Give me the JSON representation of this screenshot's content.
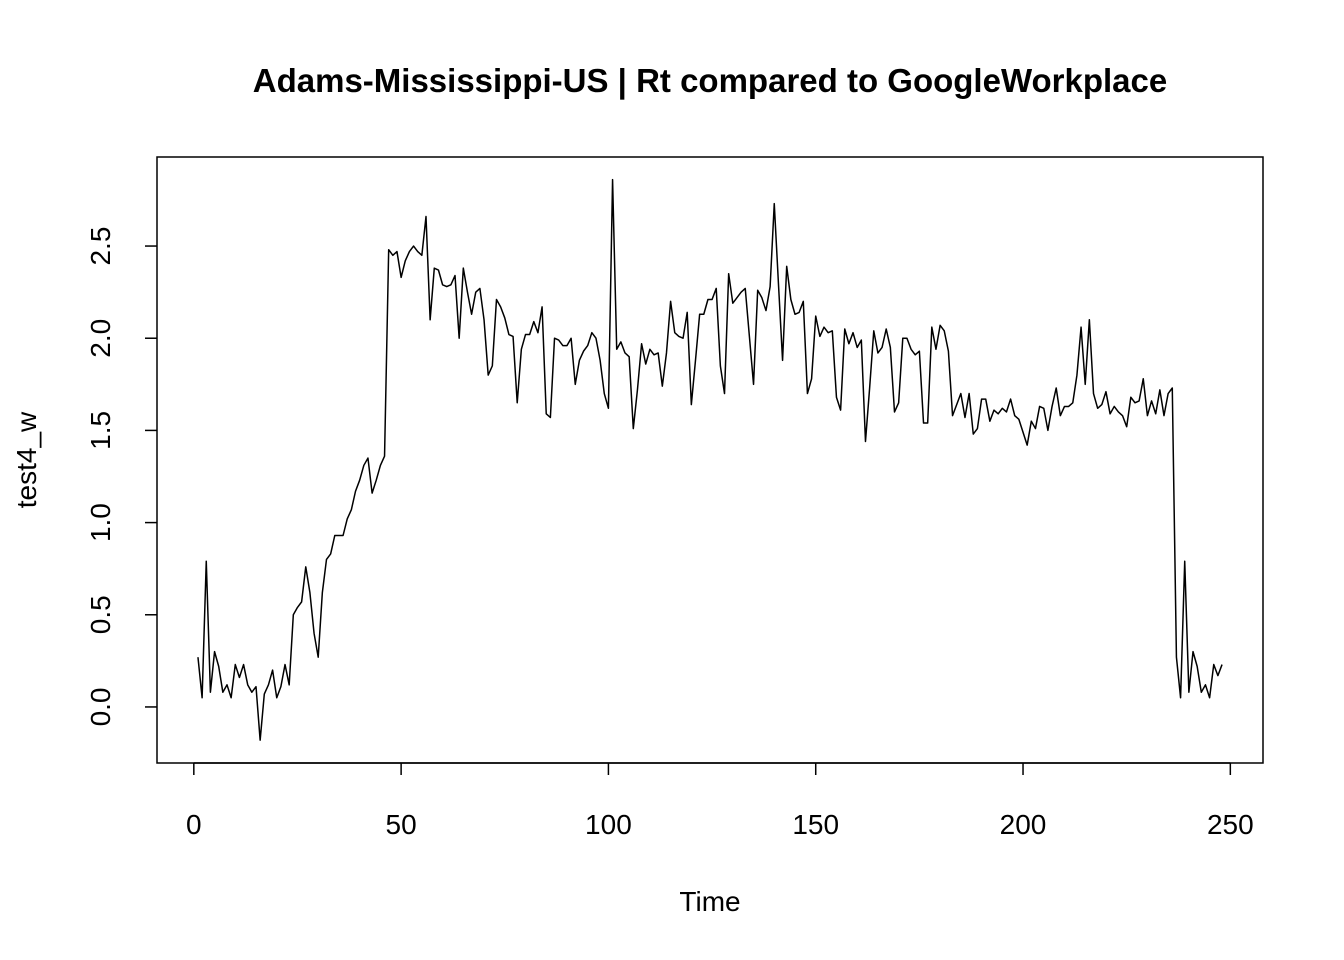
{
  "chart_data": {
    "type": "line",
    "title": "Adams-Mississippi-US | Rt compared to GoogleWorkplace",
    "x_label": "Time",
    "y_label": "test4_w",
    "x": [
      1,
      2,
      3,
      4,
      5,
      6,
      7,
      8,
      9,
      10,
      11,
      12,
      13,
      14,
      15,
      16,
      17,
      18,
      19,
      20,
      21,
      22,
      23,
      24,
      25,
      26,
      27,
      28,
      29,
      30,
      31,
      32,
      33,
      34,
      35,
      36,
      37,
      38,
      39,
      40,
      41,
      42,
      43,
      44,
      45,
      46,
      47,
      48,
      49,
      50,
      51,
      52,
      53,
      54,
      55,
      56,
      57,
      58,
      59,
      60,
      61,
      62,
      63,
      64,
      65,
      66,
      67,
      68,
      69,
      70,
      71,
      72,
      73,
      74,
      75,
      76,
      77,
      78,
      79,
      80,
      81,
      82,
      83,
      84,
      85,
      86,
      87,
      88,
      89,
      90,
      91,
      92,
      93,
      94,
      95,
      96,
      97,
      98,
      99,
      100,
      101,
      102,
      103,
      104,
      105,
      106,
      107,
      108,
      109,
      110,
      111,
      112,
      113,
      114,
      115,
      116,
      117,
      118,
      119,
      120,
      121,
      122,
      123,
      124,
      125,
      126,
      127,
      128,
      129,
      130,
      131,
      132,
      133,
      134,
      135,
      136,
      137,
      138,
      139,
      140,
      141,
      142,
      143,
      144,
      145,
      146,
      147,
      148,
      149,
      150,
      151,
      152,
      153,
      154,
      155,
      156,
      157,
      158,
      159,
      160,
      161,
      162,
      163,
      164,
      165,
      166,
      167,
      168,
      169,
      170,
      171,
      172,
      173,
      174,
      175,
      176,
      177,
      178,
      179,
      180,
      181,
      182,
      183,
      184,
      185,
      186,
      187,
      188,
      189,
      190,
      191,
      192,
      193,
      194,
      195,
      196,
      197,
      198,
      199,
      200,
      201,
      202,
      203,
      204,
      205,
      206,
      207,
      208,
      209,
      210,
      211,
      212,
      213,
      214,
      215,
      216,
      217,
      218,
      219,
      220,
      221,
      222,
      223,
      224,
      225,
      226,
      227,
      228,
      229,
      230,
      231,
      232,
      233,
      234,
      235,
      236,
      237,
      238,
      239,
      240,
      241,
      242,
      243,
      244,
      245,
      246,
      247,
      248
    ],
    "series": [
      {
        "name": "test4_w",
        "color": "#000000",
        "values": [
          0.27,
          0.05,
          0.79,
          0.08,
          0.3,
          0.22,
          0.08,
          0.12,
          0.05,
          0.23,
          0.16,
          0.23,
          0.12,
          0.08,
          0.11,
          -0.18,
          0.07,
          0.12,
          0.2,
          0.05,
          0.11,
          0.23,
          0.12,
          0.5,
          0.54,
          0.57,
          0.76,
          0.62,
          0.4,
          0.27,
          0.62,
          0.8,
          0.83,
          0.93,
          0.93,
          0.93,
          1.02,
          1.07,
          1.17,
          1.23,
          1.31,
          1.35,
          1.16,
          1.23,
          1.31,
          1.36,
          2.48,
          2.45,
          2.47,
          2.33,
          2.42,
          2.47,
          2.5,
          2.47,
          2.45,
          2.66,
          2.1,
          2.38,
          2.37,
          2.29,
          2.28,
          2.29,
          2.34,
          2.0,
          2.38,
          2.25,
          2.13,
          2.25,
          2.27,
          2.1,
          1.8,
          1.85,
          2.21,
          2.17,
          2.11,
          2.02,
          2.01,
          1.65,
          1.94,
          2.02,
          2.02,
          2.09,
          2.03,
          2.17,
          1.59,
          1.57,
          2.0,
          1.99,
          1.96,
          1.96,
          2.0,
          1.75,
          1.88,
          1.93,
          1.96,
          2.03,
          2.0,
          1.88,
          1.7,
          1.62,
          2.86,
          1.94,
          1.98,
          1.92,
          1.9,
          1.51,
          1.72,
          1.97,
          1.86,
          1.94,
          1.91,
          1.92,
          1.74,
          1.92,
          2.2,
          2.03,
          2.01,
          2.0,
          2.14,
          1.64,
          1.88,
          2.13,
          2.13,
          2.21,
          2.21,
          2.27,
          1.85,
          1.7,
          2.35,
          2.19,
          2.22,
          2.25,
          2.27,
          2.01,
          1.75,
          2.26,
          2.22,
          2.15,
          2.28,
          2.73,
          2.3,
          1.88,
          2.39,
          2.21,
          2.13,
          2.14,
          2.2,
          1.7,
          1.78,
          2.12,
          2.01,
          2.06,
          2.03,
          2.04,
          1.68,
          1.61,
          2.05,
          1.97,
          2.03,
          1.95,
          1.99,
          1.44,
          1.73,
          2.04,
          1.92,
          1.95,
          2.05,
          1.95,
          1.6,
          1.65,
          2.0,
          2.0,
          1.94,
          1.91,
          1.93,
          1.54,
          1.54,
          2.06,
          1.94,
          2.07,
          2.04,
          1.93,
          1.58,
          1.64,
          1.7,
          1.57,
          1.7,
          1.48,
          1.51,
          1.67,
          1.67,
          1.55,
          1.61,
          1.59,
          1.62,
          1.6,
          1.67,
          1.58,
          1.56,
          1.49,
          1.42,
          1.55,
          1.51,
          1.63,
          1.62,
          1.5,
          1.63,
          1.73,
          1.58,
          1.63,
          1.63,
          1.65,
          1.8,
          2.06,
          1.75,
          2.1,
          1.7,
          1.62,
          1.64,
          1.71,
          1.59,
          1.63,
          1.6,
          1.58,
          1.52,
          1.68,
          1.65,
          1.66,
          1.78,
          1.58,
          1.66,
          1.59,
          1.72,
          1.58,
          1.7,
          1.73,
          0.27,
          0.05,
          0.79,
          0.08,
          0.3,
          0.22,
          0.08,
          0.12,
          0.05,
          0.23,
          0.17,
          0.23
        ]
      }
    ],
    "xlim": [
      -8.88,
      257.88
    ],
    "ylim": [
      -0.304,
      2.983
    ],
    "xticks": [
      0,
      50,
      100,
      150,
      200,
      250
    ],
    "yticks": [
      {
        "value": 0,
        "label": "0.0"
      },
      0.5,
      {
        "value": 1,
        "label": "1.0"
      },
      1.5,
      {
        "value": 2,
        "label": "2.0"
      },
      2.5
    ]
  }
}
